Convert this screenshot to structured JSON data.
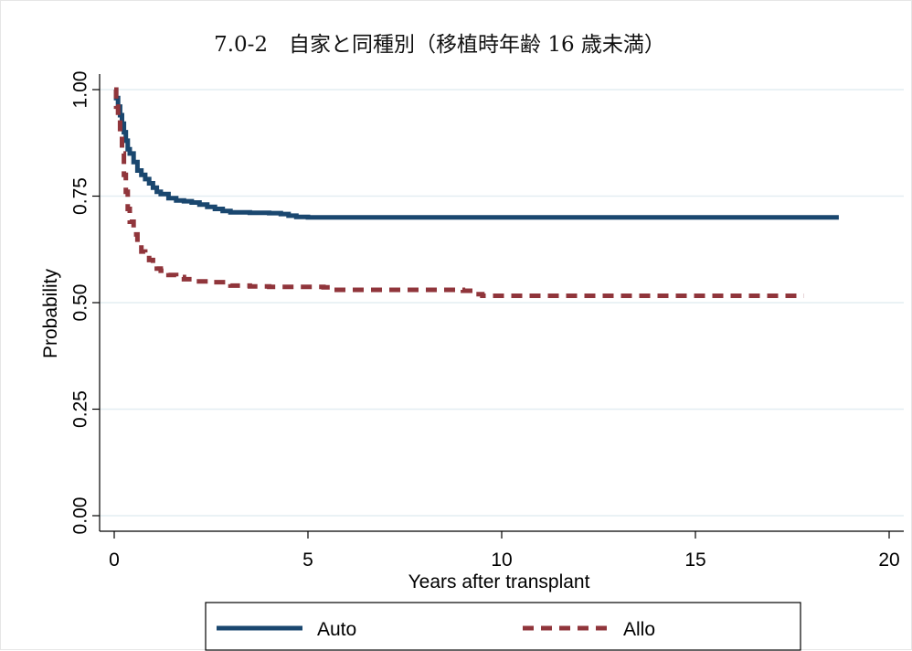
{
  "chart_data": {
    "type": "line",
    "title": "7.0-2　自家と同種別（移植時年齢 16 歳未満）",
    "xlabel": "Years after transplant",
    "ylabel": "Probability",
    "xlim": [
      0,
      20
    ],
    "ylim": [
      0,
      1
    ],
    "x_ticks": [
      "0",
      "5",
      "10",
      "15",
      "20"
    ],
    "y_ticks": [
      "0.00",
      "0.25",
      "0.50",
      "0.75",
      "1.00"
    ],
    "grid": true,
    "legend_position": "bottom",
    "series": [
      {
        "name": "Auto",
        "color": "#1a476f",
        "style": "solid",
        "x": [
          0.0,
          0.05,
          0.1,
          0.15,
          0.2,
          0.25,
          0.3,
          0.35,
          0.4,
          0.5,
          0.6,
          0.7,
          0.8,
          0.9,
          1.0,
          1.1,
          1.2,
          1.4,
          1.6,
          1.8,
          2.0,
          2.2,
          2.4,
          2.6,
          2.8,
          3.0,
          3.5,
          4.0,
          4.3,
          4.5,
          4.7,
          5.0,
          10.0,
          15.0,
          18.7
        ],
        "values": [
          1.0,
          0.98,
          0.96,
          0.94,
          0.92,
          0.9,
          0.88,
          0.86,
          0.85,
          0.83,
          0.81,
          0.8,
          0.79,
          0.78,
          0.77,
          0.76,
          0.755,
          0.745,
          0.74,
          0.738,
          0.735,
          0.73,
          0.725,
          0.72,
          0.715,
          0.712,
          0.711,
          0.71,
          0.708,
          0.704,
          0.701,
          0.7,
          0.7,
          0.7,
          0.7
        ]
      },
      {
        "name": "Allo",
        "color": "#90353b",
        "style": "dashed",
        "x": [
          0.0,
          0.05,
          0.1,
          0.15,
          0.2,
          0.25,
          0.3,
          0.35,
          0.4,
          0.5,
          0.6,
          0.7,
          0.8,
          0.9,
          1.0,
          1.1,
          1.2,
          1.4,
          1.6,
          1.8,
          2.0,
          2.5,
          3.0,
          3.5,
          4.0,
          5.0,
          5.4,
          5.6,
          7.0,
          9.0,
          9.3,
          9.5,
          12.0,
          15.0,
          17.8
        ],
        "values": [
          1.0,
          0.96,
          0.93,
          0.89,
          0.85,
          0.8,
          0.76,
          0.72,
          0.69,
          0.66,
          0.64,
          0.62,
          0.61,
          0.6,
          0.59,
          0.58,
          0.575,
          0.565,
          0.56,
          0.555,
          0.55,
          0.548,
          0.54,
          0.538,
          0.537,
          0.537,
          0.536,
          0.53,
          0.53,
          0.528,
          0.52,
          0.516,
          0.516,
          0.516,
          0.516
        ]
      }
    ]
  }
}
